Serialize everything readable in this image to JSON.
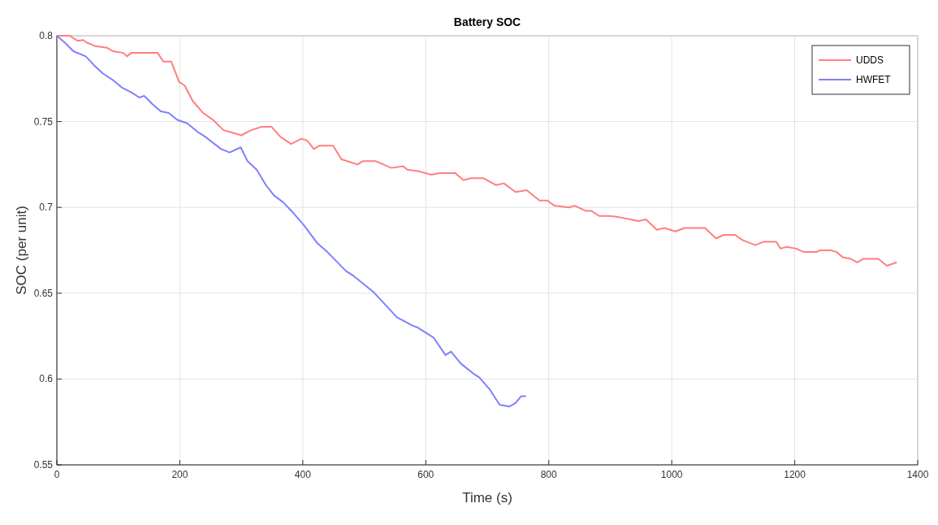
{
  "chart_data": {
    "type": "line",
    "title": "Battery SOC",
    "xlabel": "Time (s)",
    "ylabel": "SOC (per unit)",
    "xlim": [
      0,
      1400
    ],
    "ylim": [
      0.55,
      0.8
    ],
    "xticks": [
      0,
      200,
      400,
      600,
      800,
      1000,
      1200,
      1400
    ],
    "yticks": [
      0.55,
      0.6,
      0.65,
      0.7,
      0.75,
      0.8
    ],
    "grid": true,
    "legend": "top right",
    "series": [
      {
        "name": "UDDS",
        "color": "#ff7f7f",
        "x": [
          0,
          21,
          34,
          43,
          49,
          56,
          62,
          82,
          91,
          108,
          114,
          121,
          164,
          173,
          186,
          199,
          208,
          221,
          238,
          254,
          271,
          281,
          300,
          316,
          333,
          349,
          364,
          381,
          398,
          407,
          418,
          427,
          449,
          463,
          489,
          498,
          518,
          531,
          544,
          563,
          570,
          589,
          609,
          622,
          648,
          661,
          674,
          694,
          714,
          727,
          746,
          764,
          785,
          798,
          809,
          833,
          842,
          860,
          869,
          882,
          900,
          919,
          933,
          946,
          958,
          976,
          988,
          1006,
          1021,
          1054,
          1072,
          1085,
          1103,
          1115,
          1136,
          1150,
          1170,
          1177,
          1187,
          1202,
          1215,
          1235,
          1241,
          1259,
          1268,
          1278,
          1291,
          1302,
          1311,
          1336,
          1350,
          1366
        ],
        "values": [
          0.8,
          0.8,
          0.797,
          0.7975,
          0.796,
          0.795,
          0.794,
          0.793,
          0.791,
          0.79,
          0.788,
          0.79,
          0.79,
          0.785,
          0.785,
          0.773,
          0.771,
          0.762,
          0.755,
          0.751,
          0.745,
          0.744,
          0.742,
          0.745,
          0.747,
          0.747,
          0.741,
          0.737,
          0.74,
          0.739,
          0.734,
          0.736,
          0.736,
          0.728,
          0.725,
          0.727,
          0.727,
          0.725,
          0.723,
          0.724,
          0.722,
          0.721,
          0.719,
          0.72,
          0.72,
          0.716,
          0.717,
          0.717,
          0.713,
          0.714,
          0.709,
          0.71,
          0.704,
          0.704,
          0.701,
          0.7,
          0.701,
          0.698,
          0.698,
          0.695,
          0.695,
          0.694,
          0.693,
          0.692,
          0.693,
          0.687,
          0.688,
          0.686,
          0.688,
          0.688,
          0.682,
          0.684,
          0.684,
          0.681,
          0.678,
          0.68,
          0.68,
          0.676,
          0.677,
          0.676,
          0.674,
          0.674,
          0.675,
          0.675,
          0.674,
          0.671,
          0.67,
          0.668,
          0.67,
          0.67,
          0.666,
          0.668
        ]
      },
      {
        "name": "HWFET",
        "color": "#7f7fff",
        "x": [
          0,
          13,
          27,
          47,
          60,
          75,
          92,
          105,
          121,
          134,
          142,
          156,
          169,
          182,
          196,
          212,
          229,
          242,
          267,
          281,
          299,
          310,
          325,
          340,
          353,
          368,
          384,
          401,
          424,
          440,
          470,
          483,
          514,
          535,
          553,
          579,
          587,
          613,
          632,
          641,
          657,
          678,
          687,
          704,
          720,
          736,
          746,
          755,
          763
        ],
        "values": [
          0.8,
          0.796,
          0.791,
          0.788,
          0.783,
          0.778,
          0.774,
          0.77,
          0.767,
          0.764,
          0.765,
          0.76,
          0.756,
          0.755,
          0.751,
          0.749,
          0.744,
          0.741,
          0.734,
          0.732,
          0.735,
          0.727,
          0.722,
          0.713,
          0.707,
          0.703,
          0.697,
          0.69,
          0.679,
          0.674,
          0.663,
          0.66,
          0.651,
          0.643,
          0.636,
          0.631,
          0.63,
          0.624,
          0.614,
          0.616,
          0.609,
          0.603,
          0.601,
          0.594,
          0.585,
          0.584,
          0.586,
          0.59,
          0.59
        ]
      }
    ]
  }
}
